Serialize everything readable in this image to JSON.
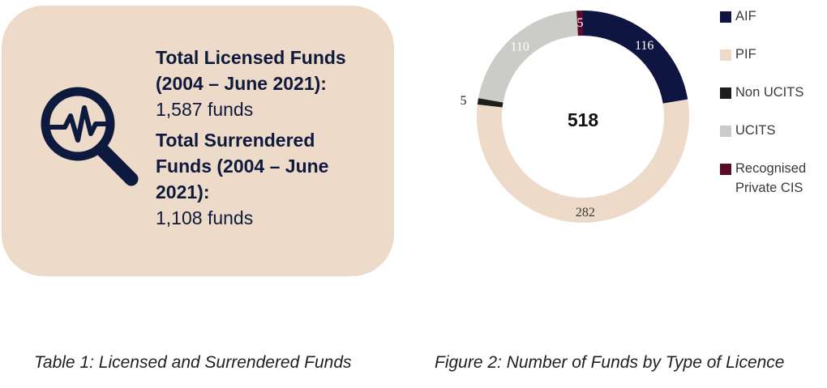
{
  "table_panel": {
    "licensed_heading": "Total Licensed Funds (2004 – June 2021):",
    "licensed_value": "1,587 funds",
    "surrendered_heading": "Total Surrendered Funds (2004 – June 2021):",
    "surrendered_value": "1,108 funds",
    "icon": "magnifier-pulse-icon",
    "background_color": "#eddac8"
  },
  "captions": {
    "table": "Table 1: Licensed and Surrendered Funds",
    "figure": "Figure 2: Number of Funds by Type of Licence"
  },
  "chart_data": {
    "type": "pie",
    "variant": "donut",
    "total_label": "518",
    "categories": [
      "AIF",
      "PIF",
      "Non UCITS",
      "UCITS",
      "Recognised Private CIS"
    ],
    "values": [
      116,
      282,
      5,
      110,
      5
    ],
    "colors": [
      "#0d1540",
      "#eddac8",
      "#1e1e1e",
      "#cbcbc8",
      "#5c0a2c"
    ],
    "label_colors": [
      "#ffffff",
      "#3a3a3a",
      "#1e1e1e",
      "#ffffff",
      "#ffffff"
    ],
    "legend_placement": "right",
    "start_angle_deg": 0
  }
}
